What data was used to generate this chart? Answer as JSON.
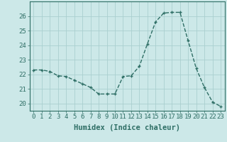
{
  "x": [
    0,
    1,
    2,
    3,
    4,
    5,
    6,
    7,
    8,
    9,
    10,
    11,
    12,
    13,
    14,
    15,
    16,
    17,
    18,
    19,
    20,
    21,
    22,
    23
  ],
  "y": [
    22.3,
    22.3,
    22.2,
    21.9,
    21.85,
    21.6,
    21.35,
    21.1,
    20.65,
    20.65,
    20.65,
    21.85,
    21.9,
    22.55,
    24.1,
    25.6,
    26.2,
    26.25,
    26.25,
    24.3,
    22.4,
    21.1,
    20.1,
    19.8
  ],
  "line_color": "#2e6e65",
  "marker": "+",
  "bg_color": "#cce8e8",
  "grid_color": "#aacfcf",
  "xlabel": "Humidex (Indice chaleur)",
  "ylim": [
    19.5,
    27.0
  ],
  "xlim": [
    -0.5,
    23.5
  ],
  "yticks": [
    20,
    21,
    22,
    23,
    24,
    25,
    26
  ],
  "xticks": [
    0,
    1,
    2,
    3,
    4,
    5,
    6,
    7,
    8,
    9,
    10,
    11,
    12,
    13,
    14,
    15,
    16,
    17,
    18,
    19,
    20,
    21,
    22,
    23
  ],
  "tick_fontsize": 6.5,
  "xlabel_fontsize": 7.5,
  "linewidth": 1.0,
  "markersize": 3.5,
  "spine_color": "#2e6e65"
}
